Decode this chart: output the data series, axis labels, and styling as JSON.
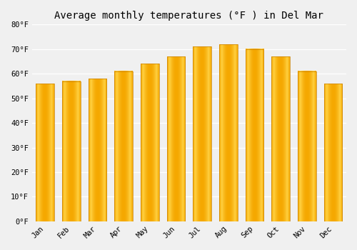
{
  "title": "Average monthly temperatures (°F ) in Del Mar",
  "months": [
    "Jan",
    "Feb",
    "Mar",
    "Apr",
    "May",
    "Jun",
    "Jul",
    "Aug",
    "Sep",
    "Oct",
    "Nov",
    "Dec"
  ],
  "values": [
    56,
    57,
    58,
    61,
    64,
    67,
    71,
    72,
    70,
    67,
    61,
    56
  ],
  "bar_color_dark": "#F5A800",
  "bar_color_light": "#FFD040",
  "bar_edge_color": "#C88000",
  "ylim": [
    0,
    80
  ],
  "yticks": [
    0,
    10,
    20,
    30,
    40,
    50,
    60,
    70,
    80
  ],
  "background_color": "#f0f0f0",
  "plot_bg_color": "#f0f0f0",
  "grid_color": "#ffffff",
  "title_fontsize": 10,
  "tick_fontsize": 7.5,
  "font_family": "monospace"
}
